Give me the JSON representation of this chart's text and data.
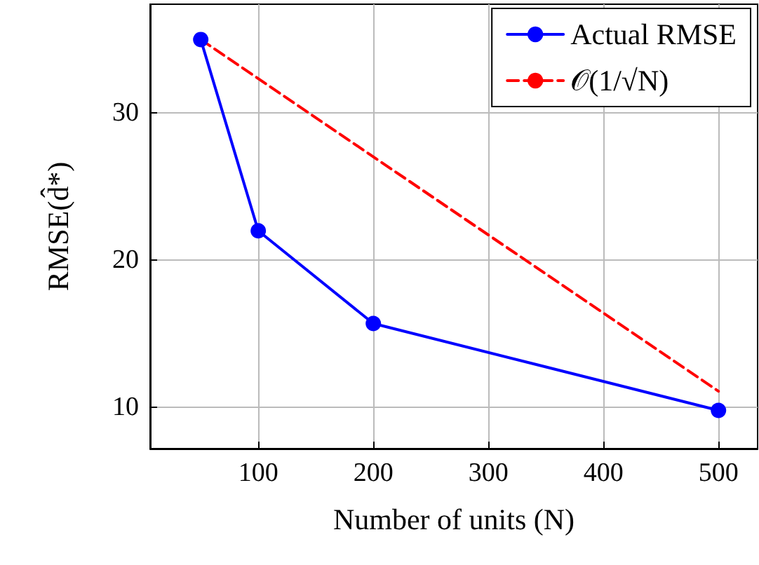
{
  "chart_data": {
    "type": "line",
    "xlabel": "Number of units (N)",
    "ylabel": "RMSE(d̂*)",
    "xlim": [
      6,
      534
    ],
    "xticks": [
      100,
      200,
      300,
      400,
      500
    ],
    "ylim": [
      7.2,
      37.4
    ],
    "yticks": [
      10,
      20,
      30
    ],
    "grid": true,
    "legend": "top right",
    "series": [
      {
        "name": "Actual RMSE",
        "color": "#0000ff",
        "x": [
          50,
          100,
          200,
          500
        ],
        "values": [
          35,
          22,
          15.7,
          9.8
        ],
        "marker": "circle",
        "line_style": "solid"
      },
      {
        "name": "𝒪(1/√N)",
        "color": "#ff0000",
        "x": [
          50,
          500
        ],
        "values": [
          35,
          11.1
        ],
        "marker": "none",
        "line_style": "dashed"
      }
    ]
  }
}
